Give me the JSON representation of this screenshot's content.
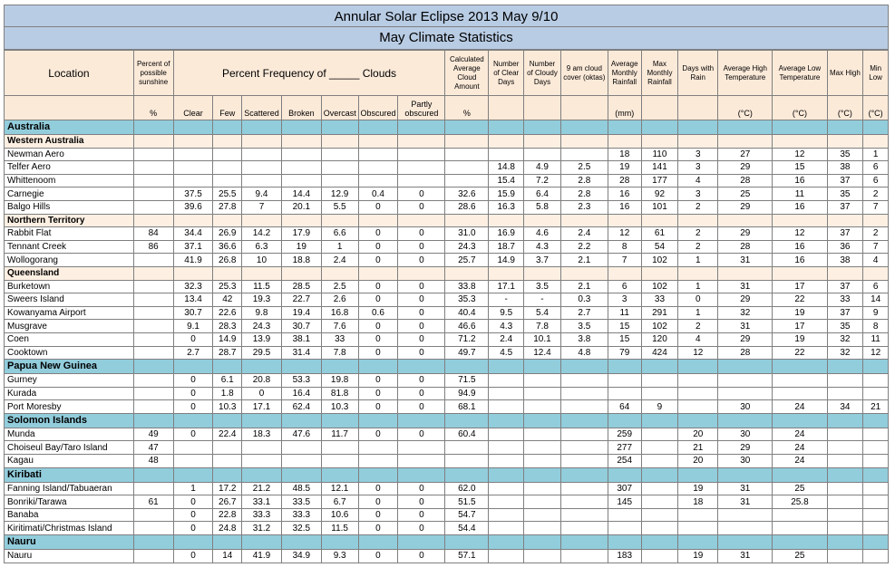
{
  "title": "Annular Solar Eclipse 2013 May 9/10",
  "subtitle": "May Climate Statistics",
  "headers": {
    "location": "Location",
    "sunshine": "Percent of possible sunshine",
    "freq_group": "Percent Frequency of _____ Clouds",
    "cloud_amount": "Calculated Average Cloud Amount",
    "clear_days": "Number of Clear Days",
    "cloudy_days": "Number of Cloudy Days",
    "cloud_cover": "9 am cloud cover (oktas)",
    "avg_rain": "Average Monthly Rainfall",
    "max_rain": "Max Monthly Rainfall",
    "rain_days": "Days with Rain",
    "avg_high": "Average High Temperature",
    "avg_low": "Average Low Temperature",
    "max_high": "Max High",
    "min_low": "Min Low"
  },
  "units": [
    "",
    "%",
    "Clear",
    "Few",
    "Scattered",
    "Broken",
    "Overcast",
    "Obscured",
    "Partly obscured",
    "%",
    "",
    "",
    "",
    "(mm)",
    "",
    "",
    "(°C)",
    "(°C)",
    "(°C)",
    "(°C)"
  ],
  "rows": [
    {
      "kind": "country",
      "label": "Australia"
    },
    {
      "kind": "region",
      "label": "Western Australia"
    },
    {
      "kind": "data",
      "cells": [
        "Newman Aero",
        "",
        "",
        "",
        "",
        "",
        "",
        "",
        "",
        "",
        "",
        "",
        "",
        "18",
        "110",
        "3",
        "27",
        "12",
        "35",
        "1"
      ]
    },
    {
      "kind": "data",
      "cells": [
        "Telfer Aero",
        "",
        "",
        "",
        "",
        "",
        "",
        "",
        "",
        "",
        "14.8",
        "4.9",
        "2.5",
        "19",
        "141",
        "3",
        "29",
        "15",
        "38",
        "6"
      ]
    },
    {
      "kind": "data",
      "cells": [
        "Whittenoom",
        "",
        "",
        "",
        "",
        "",
        "",
        "",
        "",
        "",
        "15.4",
        "7.2",
        "2.8",
        "28",
        "177",
        "4",
        "28",
        "16",
        "37",
        "6"
      ]
    },
    {
      "kind": "data",
      "cells": [
        "Carnegie",
        "",
        "37.5",
        "25.5",
        "9.4",
        "14.4",
        "12.9",
        "0.4",
        "0",
        "32.6",
        "15.9",
        "6.4",
        "2.8",
        "16",
        "92",
        "3",
        "25",
        "11",
        "35",
        "2"
      ]
    },
    {
      "kind": "data",
      "cells": [
        "Balgo Hills",
        "",
        "39.6",
        "27.8",
        "7",
        "20.1",
        "5.5",
        "0",
        "0",
        "28.6",
        "16.3",
        "5.8",
        "2.3",
        "16",
        "101",
        "2",
        "29",
        "16",
        "37",
        "7"
      ]
    },
    {
      "kind": "region",
      "label": "Northern Territory"
    },
    {
      "kind": "data",
      "cells": [
        "Rabbit Flat",
        "84",
        "34.4",
        "26.9",
        "14.2",
        "17.9",
        "6.6",
        "0",
        "0",
        "31.0",
        "16.9",
        "4.6",
        "2.4",
        "12",
        "61",
        "2",
        "29",
        "12",
        "37",
        "2"
      ]
    },
    {
      "kind": "data",
      "cells": [
        "Tennant Creek",
        "86",
        "37.1",
        "36.6",
        "6.3",
        "19",
        "1",
        "0",
        "0",
        "24.3",
        "18.7",
        "4.3",
        "2.2",
        "8",
        "54",
        "2",
        "28",
        "16",
        "36",
        "7"
      ]
    },
    {
      "kind": "data",
      "cells": [
        "Wollogorang",
        "",
        "41.9",
        "26.8",
        "10",
        "18.8",
        "2.4",
        "0",
        "0",
        "25.7",
        "14.9",
        "3.7",
        "2.1",
        "7",
        "102",
        "1",
        "31",
        "16",
        "38",
        "4"
      ]
    },
    {
      "kind": "region",
      "label": "Queensland"
    },
    {
      "kind": "data",
      "cells": [
        "Burketown",
        "",
        "32.3",
        "25.3",
        "11.5",
        "28.5",
        "2.5",
        "0",
        "0",
        "33.8",
        "17.1",
        "3.5",
        "2.1",
        "6",
        "102",
        "1",
        "31",
        "17",
        "37",
        "6"
      ]
    },
    {
      "kind": "data",
      "cells": [
        "Sweers Island",
        "",
        "13.4",
        "42",
        "19.3",
        "22.7",
        "2.6",
        "0",
        "0",
        "35.3",
        "-",
        "-",
        "0.3",
        "3",
        "33",
        "0",
        "29",
        "22",
        "33",
        "14"
      ]
    },
    {
      "kind": "data",
      "cells": [
        "Kowanyama Airport",
        "",
        "30.7",
        "22.6",
        "9.8",
        "19.4",
        "16.8",
        "0.6",
        "0",
        "40.4",
        "9.5",
        "5.4",
        "2.7",
        "11",
        "291",
        "1",
        "32",
        "19",
        "37",
        "9"
      ]
    },
    {
      "kind": "data",
      "cells": [
        "Musgrave",
        "",
        "9.1",
        "28.3",
        "24.3",
        "30.7",
        "7.6",
        "0",
        "0",
        "46.6",
        "4.3",
        "7.8",
        "3.5",
        "15",
        "102",
        "2",
        "31",
        "17",
        "35",
        "8"
      ]
    },
    {
      "kind": "data",
      "cells": [
        "Coen",
        "",
        "0",
        "14.9",
        "13.9",
        "38.1",
        "33",
        "0",
        "0",
        "71.2",
        "2.4",
        "10.1",
        "3.8",
        "15",
        "120",
        "4",
        "29",
        "19",
        "32",
        "11"
      ]
    },
    {
      "kind": "data",
      "cells": [
        "Cooktown",
        "",
        "2.7",
        "28.7",
        "29.5",
        "31.4",
        "7.8",
        "0",
        "0",
        "49.7",
        "4.5",
        "12.4",
        "4.8",
        "79",
        "424",
        "12",
        "28",
        "22",
        "32",
        "12"
      ]
    },
    {
      "kind": "country",
      "label": "Papua New Guinea"
    },
    {
      "kind": "data",
      "cells": [
        "Gurney",
        "",
        "0",
        "6.1",
        "20.8",
        "53.3",
        "19.8",
        "0",
        "0",
        "71.5",
        "",
        "",
        "",
        "",
        "",
        "",
        "",
        "",
        "",
        ""
      ]
    },
    {
      "kind": "data",
      "cells": [
        "Kurada",
        "",
        "0",
        "1.8",
        "0",
        "16.4",
        "81.8",
        "0",
        "0",
        "94.9",
        "",
        "",
        "",
        "",
        "",
        "",
        "",
        "",
        "",
        ""
      ]
    },
    {
      "kind": "data",
      "cells": [
        "Port Moresby",
        "",
        "0",
        "10.3",
        "17.1",
        "62.4",
        "10.3",
        "0",
        "0",
        "68.1",
        "",
        "",
        "",
        "64",
        "9",
        "",
        "30",
        "24",
        "34",
        "21"
      ]
    },
    {
      "kind": "country",
      "label": "Solomon Islands"
    },
    {
      "kind": "data",
      "cells": [
        "Munda",
        "49",
        "0",
        "22.4",
        "18.3",
        "47.6",
        "11.7",
        "0",
        "0",
        "60.4",
        "",
        "",
        "",
        "259",
        "",
        "20",
        "30",
        "24",
        "",
        ""
      ]
    },
    {
      "kind": "data",
      "cells": [
        "Choiseul Bay/Taro Island",
        "47",
        "",
        "",
        "",
        "",
        "",
        "",
        "",
        "",
        "",
        "",
        "",
        "277",
        "",
        "21",
        "29",
        "24",
        "",
        ""
      ]
    },
    {
      "kind": "data",
      "cells": [
        "Kagau",
        "48",
        "",
        "",
        "",
        "",
        "",
        "",
        "",
        "",
        "",
        "",
        "",
        "254",
        "",
        "20",
        "30",
        "24",
        "",
        ""
      ]
    },
    {
      "kind": "country",
      "label": "Kiribati"
    },
    {
      "kind": "data",
      "cells": [
        "Fanning Island/Tabuaeran",
        "",
        "1",
        "17.2",
        "21.2",
        "48.5",
        "12.1",
        "0",
        "0",
        "62.0",
        "",
        "",
        "",
        "307",
        "",
        "19",
        "31",
        "25",
        "",
        ""
      ]
    },
    {
      "kind": "data",
      "cells": [
        "Bonriki/Tarawa",
        "61",
        "0",
        "26.7",
        "33.1",
        "33.5",
        "6.7",
        "0",
        "0",
        "51.5",
        "",
        "",
        "",
        "145",
        "",
        "18",
        "31",
        "25.8",
        "",
        ""
      ]
    },
    {
      "kind": "data",
      "cells": [
        "Banaba",
        "",
        "0",
        "22.8",
        "33.3",
        "33.3",
        "10.6",
        "0",
        "0",
        "54.7",
        "",
        "",
        "",
        "",
        "",
        "",
        "",
        "",
        "",
        ""
      ]
    },
    {
      "kind": "data",
      "cells": [
        "Kiritimati/Christmas Island",
        "",
        "0",
        "24.8",
        "31.2",
        "32.5",
        "11.5",
        "0",
        "0",
        "54.4",
        "",
        "",
        "",
        "",
        "",
        "",
        "",
        "",
        "",
        ""
      ]
    },
    {
      "kind": "country",
      "label": "Nauru"
    },
    {
      "kind": "data",
      "cells": [
        "Nauru",
        "",
        "0",
        "14",
        "41.9",
        "34.9",
        "9.3",
        "0",
        "0",
        "57.1",
        "",
        "",
        "",
        "183",
        "",
        "19",
        "31",
        "25",
        "",
        ""
      ]
    }
  ]
}
